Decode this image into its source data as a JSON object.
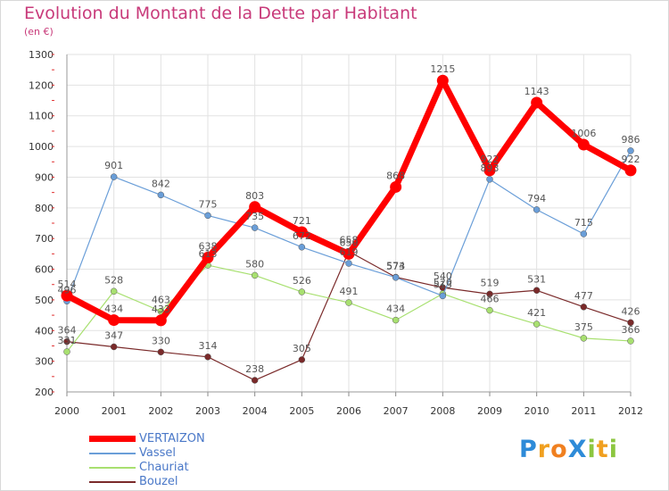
{
  "title": "Evolution du Montant de la Dette par Habitant",
  "unit_label": "(en €)",
  "logo_text": "ProXiti",
  "chart_data": {
    "type": "line",
    "title": "Evolution du Montant de la Dette par Habitant",
    "subtitle": "(en €)",
    "x": [
      2000,
      2001,
      2002,
      2003,
      2004,
      2005,
      2006,
      2007,
      2008,
      2009,
      2010,
      2011,
      2012
    ],
    "ylim": [
      200,
      1300
    ],
    "yticks": [
      200,
      300,
      400,
      500,
      600,
      700,
      800,
      900,
      1000,
      1100,
      1200,
      1300
    ],
    "grid": true,
    "legend_position": "bottom-left",
    "series": [
      {
        "name": "VERTAIZON",
        "color": "#ff0000",
        "values": [
          514,
          434,
          433,
          638,
          803,
          721,
          650,
          868,
          1215,
          922,
          1143,
          1006,
          922
        ]
      },
      {
        "name": "Vassel",
        "color": "#6a9ed8",
        "values": [
          496,
          901,
          842,
          775,
          735,
          672,
          619,
          573,
          513,
          893,
          794,
          715,
          986
        ]
      },
      {
        "name": "Chauriat",
        "color": "#a8e070",
        "values": [
          331,
          528,
          463,
          613,
          580,
          526,
          491,
          434,
          520,
          466,
          421,
          375,
          366
        ]
      },
      {
        "name": "Bouzel",
        "color": "#7a2a2a",
        "values": [
          364,
          347,
          330,
          314,
          238,
          305,
          658,
          574,
          540,
          519,
          531,
          477,
          426
        ]
      }
    ]
  }
}
